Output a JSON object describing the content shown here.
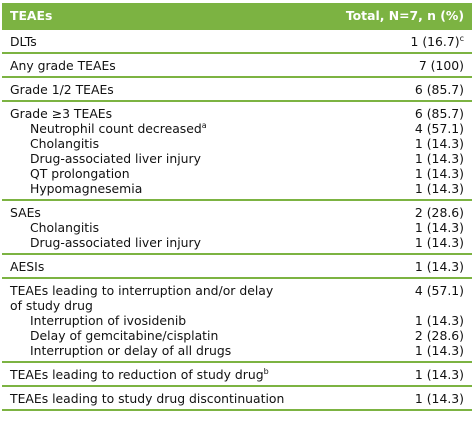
{
  "header": {
    "col1": "TEAEs",
    "col2": "Total, N=7, n (%)"
  },
  "groups": [
    {
      "rows": [
        {
          "label": "DLTs",
          "value": "1 (16.7)",
          "value_sup": "c"
        }
      ]
    },
    {
      "rows": [
        {
          "label": "Any grade TEAEs",
          "value": "7 (100)"
        }
      ]
    },
    {
      "rows": [
        {
          "label": "Grade 1/2 TEAEs",
          "value": "6 (85.7)"
        }
      ]
    },
    {
      "rows": [
        {
          "label": "Grade ≥3 TEAEs",
          "value": "6 (85.7)"
        },
        {
          "label": "Neutrophil count decreased",
          "label_sup": "a",
          "value": "4 (57.1)",
          "indent": true
        },
        {
          "label": "Cholangitis",
          "value": "1 (14.3)",
          "indent": true
        },
        {
          "label": "Drug-associated liver injury",
          "value": "1 (14.3)",
          "indent": true
        },
        {
          "label": "QT prolongation",
          "value": "1 (14.3)",
          "indent": true
        },
        {
          "label": "Hypomagnesemia",
          "value": "1 (14.3)",
          "indent": true
        }
      ]
    },
    {
      "rows": [
        {
          "label": "SAEs",
          "value": "2 (28.6)"
        },
        {
          "label": "Cholangitis",
          "value": "1 (14.3)",
          "indent": true
        },
        {
          "label": "Drug-associated liver injury",
          "value": "1 (14.3)",
          "indent": true
        }
      ]
    },
    {
      "rows": [
        {
          "label": "AESIs",
          "value": "1 (14.3)"
        }
      ]
    },
    {
      "rows": [
        {
          "label": "TEAEs leading to interruption and/or delay",
          "label2": "of study drug",
          "value": "4 (57.1)"
        },
        {
          "label": "Interruption of ivosidenib",
          "value": "1 (14.3)",
          "indent": true
        },
        {
          "label": "Delay of gemcitabine/cisplatin",
          "value": "2 (28.6)",
          "indent": true
        },
        {
          "label": "Interruption or delay of all drugs",
          "value": "1 (14.3)",
          "indent": true
        }
      ]
    },
    {
      "rows": [
        {
          "label": "TEAEs leading to reduction of study drug",
          "label_sup": "b",
          "value": "1 (14.3)"
        }
      ]
    },
    {
      "rows": [
        {
          "label": "TEAEs leading to study drug discontinuation",
          "value": "1 (14.3)"
        }
      ]
    }
  ]
}
